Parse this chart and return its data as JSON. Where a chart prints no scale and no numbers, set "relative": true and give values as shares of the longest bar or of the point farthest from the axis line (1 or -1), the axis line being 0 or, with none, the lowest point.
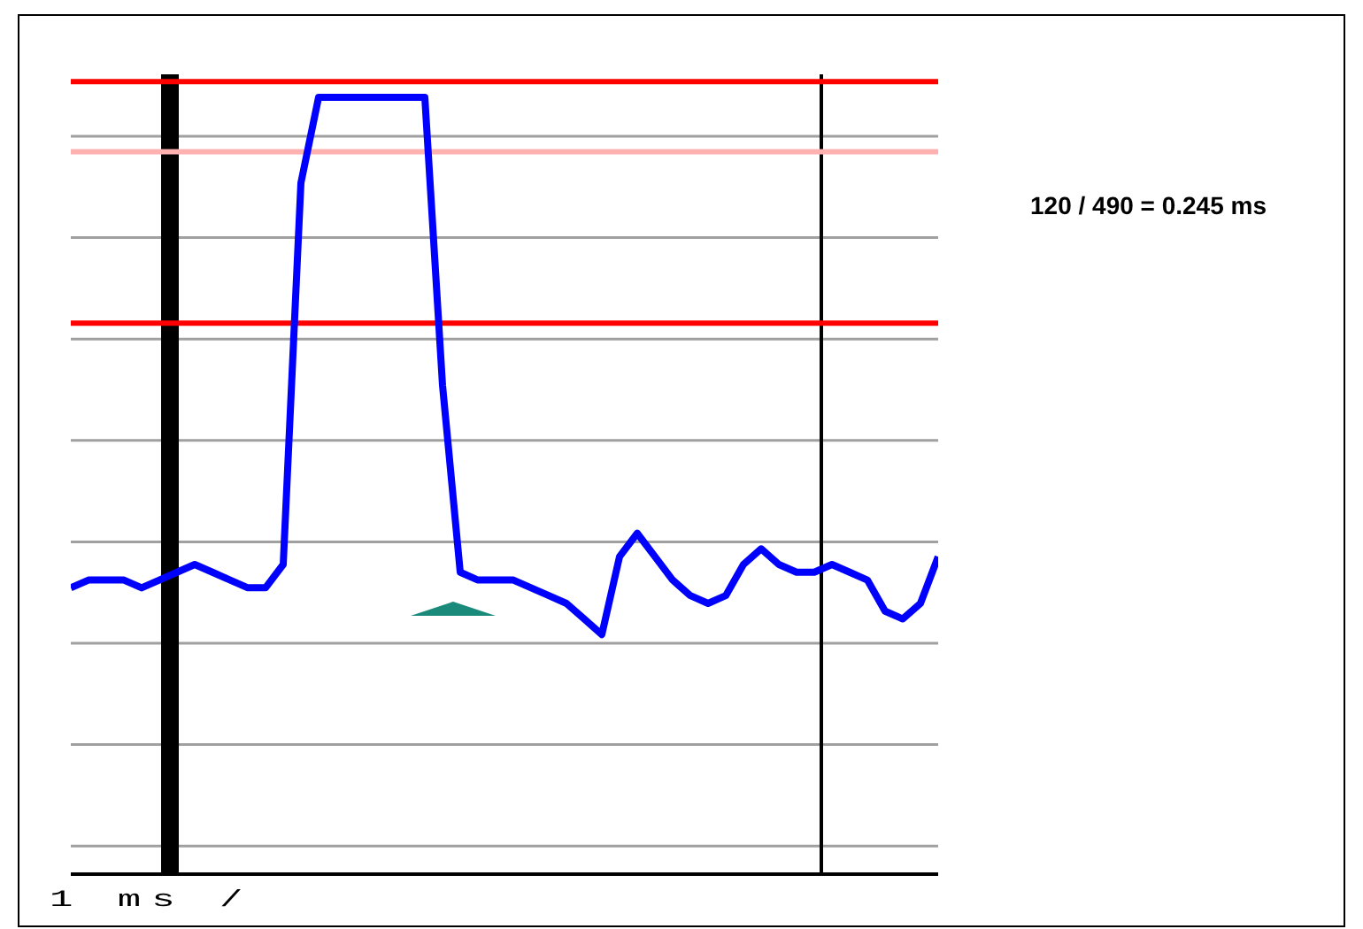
{
  "chart_data": {
    "type": "line",
    "relative": true,
    "grid": "y",
    "marker": "none",
    "legend": false,
    "categories": [
      null,
      null,
      null,
      null,
      null,
      null,
      null,
      null,
      null,
      null,
      null,
      null,
      null,
      null,
      null,
      null,
      null,
      null,
      null,
      null,
      null,
      null,
      null,
      null,
      null,
      null,
      null,
      null,
      null,
      null,
      null,
      null,
      null,
      null,
      null,
      null,
      null,
      null,
      null,
      null,
      null,
      null,
      null,
      null,
      null,
      null,
      null,
      null,
      null,
      null
    ],
    "series": [
      {
        "color": "#0000ff",
        "values": [
          0.37,
          0.38,
          0.38,
          0.38,
          0.37,
          0.38,
          0.39,
          0.4,
          0.39,
          0.38,
          0.37,
          0.37,
          0.4,
          0.89,
          1,
          1,
          1,
          1,
          1,
          1,
          1,
          0.63,
          0.39,
          0.38,
          0.38,
          0.38,
          0.37,
          0.36,
          0.35,
          0.33,
          0.31,
          0.41,
          0.44,
          0.41,
          0.38,
          0.36,
          0.35,
          0.36,
          0.4,
          0.42,
          0.4,
          0.39,
          0.39,
          0.4,
          0.39,
          0.38,
          0.34,
          0.33,
          0.35,
          0.41
        ]
      }
    ],
    "ref_lines": [
      {
        "axis": "y",
        "value": 1.02,
        "color": "#ff0000"
      },
      {
        "axis": "y",
        "value": 0.93,
        "color": "#ffb0b0"
      },
      {
        "axis": "y",
        "value": 0.71,
        "color": "#ff0000"
      }
    ],
    "annotations": [
      "120 / 490 = 0.245 ms",
      "1 ms /"
    ]
  }
}
